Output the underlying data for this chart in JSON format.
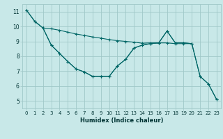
{
  "xlabel": "Humidex (Indice chaleur)",
  "bg_color": "#c8e8e8",
  "grid_color": "#a0c8c8",
  "line_color": "#006666",
  "xlim": [
    -0.5,
    23.5
  ],
  "ylim": [
    4.5,
    11.5
  ],
  "xticks": [
    0,
    1,
    2,
    3,
    4,
    5,
    6,
    7,
    8,
    9,
    10,
    11,
    12,
    13,
    14,
    15,
    16,
    17,
    18,
    19,
    20,
    21,
    22,
    23
  ],
  "yticks": [
    5,
    6,
    7,
    8,
    9,
    10,
    11
  ],
  "curve1_x": [
    0,
    1,
    2,
    3,
    4,
    5,
    6,
    7,
    8,
    9,
    10,
    11,
    12,
    13,
    14,
    15,
    16,
    17,
    18,
    19,
    20
  ],
  "curve1_y": [
    11.1,
    10.35,
    9.9,
    9.85,
    9.75,
    9.62,
    9.5,
    9.4,
    9.3,
    9.22,
    9.12,
    9.05,
    9.0,
    8.95,
    8.88,
    8.9,
    8.9,
    9.7,
    8.9,
    8.9,
    8.85
  ],
  "curve2_x": [
    2,
    3,
    4,
    5,
    6,
    7,
    8,
    9,
    10,
    11,
    12,
    13,
    14,
    15,
    16,
    17,
    18,
    19,
    20,
    21,
    22,
    23
  ],
  "curve2_y": [
    9.9,
    8.75,
    8.2,
    7.65,
    7.15,
    6.95,
    6.65,
    6.65,
    6.65,
    7.35,
    7.8,
    8.55,
    8.75,
    8.85,
    8.9,
    8.9,
    8.85,
    8.85,
    8.85,
    6.65,
    6.15,
    5.1
  ],
  "curve3_x": [
    0,
    1,
    2,
    3,
    4,
    5,
    6,
    7,
    8,
    9,
    10,
    11,
    12,
    13,
    14,
    15,
    16,
    17,
    18,
    19,
    20,
    21,
    22,
    23
  ],
  "curve3_y": [
    11.1,
    10.35,
    9.9,
    8.75,
    8.2,
    7.65,
    7.15,
    6.95,
    6.65,
    6.65,
    6.65,
    7.35,
    7.8,
    8.55,
    8.75,
    8.85,
    8.9,
    9.7,
    8.9,
    8.9,
    8.85,
    6.65,
    6.15,
    5.1
  ]
}
